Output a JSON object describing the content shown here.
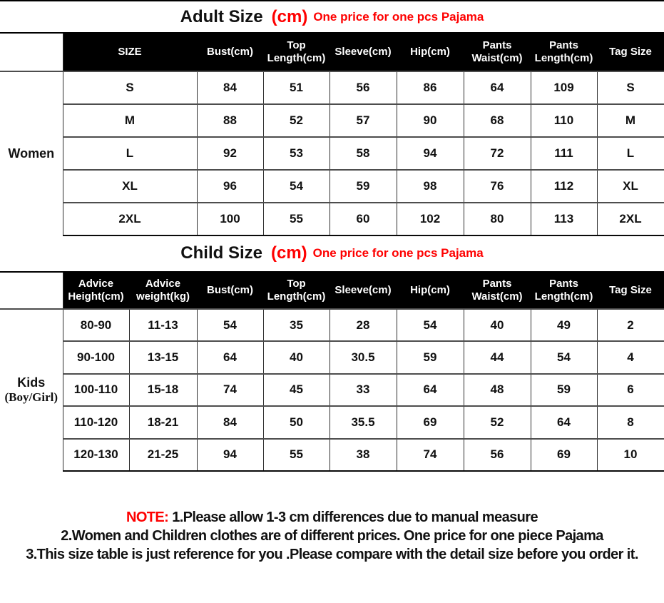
{
  "colors": {
    "accent_red": "#fe0000",
    "flag_green": "#00b000",
    "header_bg": "#000000",
    "header_text": "#ffffff"
  },
  "adult": {
    "title": "Adult Size",
    "title_unit": "(cm)",
    "title_note": "One price for one pcs Pajama",
    "side_label": "Women",
    "headers": [
      "SIZE",
      "Bust(cm)",
      "Top\nLength(cm)",
      "Sleeve(cm)",
      "Hip(cm)",
      "Pants\nWaist(cm)",
      "Pants\nLength(cm)",
      "Tag Size"
    ],
    "rows": [
      [
        "S",
        "84",
        "51",
        "56",
        "86",
        "64",
        "109",
        "S"
      ],
      [
        "M",
        "88",
        "52",
        "57",
        "90",
        "68",
        "110",
        "M"
      ],
      [
        "L",
        "92",
        "53",
        "58",
        "94",
        "72",
        "111",
        "L"
      ],
      [
        "XL",
        "96",
        "54",
        "59",
        "98",
        "76",
        "112",
        "XL"
      ],
      [
        "2XL",
        "100",
        "55",
        "60",
        "102",
        "80",
        "113",
        "2XL"
      ]
    ]
  },
  "child": {
    "title": "Child Size",
    "title_unit": "(cm)",
    "title_note": "One price for one pcs Pajama",
    "side_label_1": "Kids",
    "side_label_2": "(Boy/Girl)",
    "headers": [
      "Advice\nHeight(cm)",
      "Advice\nweight(kg)",
      "Bust(cm)",
      "Top\nLength(cm)",
      "Sleeve(cm)",
      "Hip(cm)",
      "Pants\nWaist(cm)",
      "Pants\nLength(cm)",
      "Tag Size"
    ],
    "rows": [
      [
        "80-90",
        "11-13",
        "54",
        "35",
        "28",
        "54",
        "40",
        "49",
        "2"
      ],
      [
        "90-100",
        "13-15",
        "64",
        "40",
        "30.5",
        "59",
        "44",
        "54",
        "4"
      ],
      [
        "100-110",
        "15-18",
        "74",
        "45",
        "33",
        "64",
        "48",
        "59",
        "6"
      ],
      [
        "110-120",
        "18-21",
        "84",
        "50",
        "35.5",
        "69",
        "52",
        "64",
        "8"
      ],
      [
        "120-130",
        "21-25",
        "94",
        "55",
        "38",
        "74",
        "56",
        "69",
        "10"
      ]
    ],
    "corner_flags": {
      "column_index": 6,
      "row_indices": [
        1,
        2,
        3,
        4
      ],
      "color": "#00b000"
    }
  },
  "note": {
    "label": "NOTE:",
    "lines": [
      "1.Please allow 1-3 cm differences due to manual measure",
      "2.Women and Children clothes are of different prices. One price for one piece Pajama",
      "3.This size table is just reference for you .Please compare with the detail size before you order  it."
    ]
  }
}
